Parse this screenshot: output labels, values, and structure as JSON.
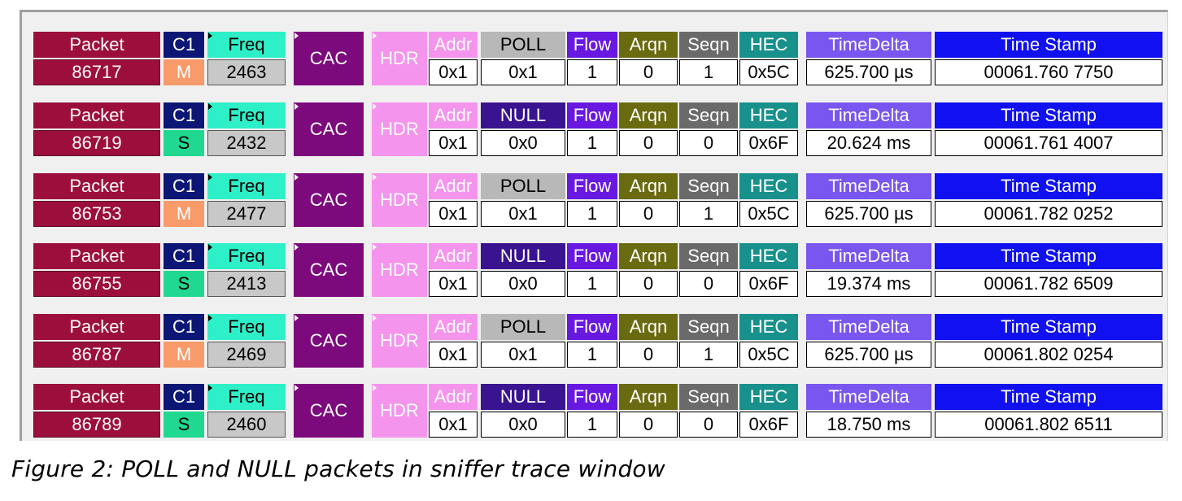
{
  "labels": {
    "packet": "Packet",
    "c1": "C1",
    "freq": "Freq",
    "cac": "CAC",
    "hdr": "HDR",
    "addr": "Addr",
    "flow": "Flow",
    "arqn": "Arqn",
    "seqn": "Seqn",
    "hec": "HEC",
    "time_delta": "TimeDelta",
    "time_stamp": "Time Stamp"
  },
  "packets": [
    {
      "packet": "86717",
      "role": "M",
      "freq": "2463",
      "type": "POLL",
      "addr": "0x1",
      "type_value": "0x1",
      "flow": "1",
      "arqn": "0",
      "seqn": "1",
      "hec": "0x5C",
      "time_delta": "625.700 µs",
      "time_stamp": "00061.760 7750"
    },
    {
      "packet": "86719",
      "role": "S",
      "freq": "2432",
      "type": "NULL",
      "addr": "0x1",
      "type_value": "0x0",
      "flow": "1",
      "arqn": "0",
      "seqn": "0",
      "hec": "0x6F",
      "time_delta": "20.624 ms",
      "time_stamp": "00061.761 4007"
    },
    {
      "packet": "86753",
      "role": "M",
      "freq": "2477",
      "type": "POLL",
      "addr": "0x1",
      "type_value": "0x1",
      "flow": "1",
      "arqn": "0",
      "seqn": "1",
      "hec": "0x5C",
      "time_delta": "625.700 µs",
      "time_stamp": "00061.782 0252"
    },
    {
      "packet": "86755",
      "role": "S",
      "freq": "2413",
      "type": "NULL",
      "addr": "0x1",
      "type_value": "0x0",
      "flow": "1",
      "arqn": "0",
      "seqn": "0",
      "hec": "0x6F",
      "time_delta": "19.374 ms",
      "time_stamp": "00061.782 6509"
    },
    {
      "packet": "86787",
      "role": "M",
      "freq": "2469",
      "type": "POLL",
      "addr": "0x1",
      "type_value": "0x1",
      "flow": "1",
      "arqn": "0",
      "seqn": "1",
      "hec": "0x5C",
      "time_delta": "625.700 µs",
      "time_stamp": "00061.802 0254"
    },
    {
      "packet": "86789",
      "role": "S",
      "freq": "2460",
      "type": "NULL",
      "addr": "0x1",
      "type_value": "0x0",
      "flow": "1",
      "arqn": "0",
      "seqn": "0",
      "hec": "0x6F",
      "time_delta": "18.750 ms",
      "time_stamp": "00061.802 6511"
    }
  ],
  "caption": "Figure 2: POLL and NULL packets in sniffer trace window"
}
